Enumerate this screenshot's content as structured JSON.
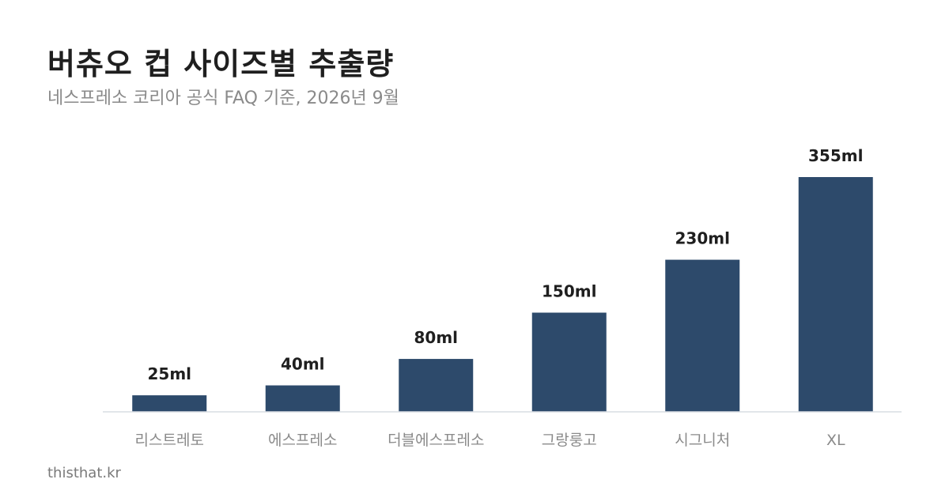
{
  "header": {
    "title": "버츄오 컵 사이즈별 추출량",
    "subtitle": "네스프레소 코리아 공식 FAQ 기준, 2026년 9월"
  },
  "chart_data": {
    "type": "bar",
    "title": "버츄오 컵 사이즈별 추출량",
    "subtitle": "네스프레소 코리아 공식 FAQ 기준, 2026년 9월",
    "categories": [
      "리스트레토",
      "에스프레소",
      "더블에스프레소",
      "그랑룽고",
      "시그니처",
      "XL"
    ],
    "values": [
      25,
      40,
      80,
      150,
      230,
      355
    ],
    "value_labels": [
      "25ml",
      "40ml",
      "80ml",
      "150ml",
      "230ml",
      "355ml"
    ],
    "unit": "ml",
    "ylim": [
      0,
      355
    ],
    "grid": false,
    "legend": "none",
    "bar_color": "#2d4a6b"
  },
  "footer": {
    "source": "thisthat.kr"
  }
}
